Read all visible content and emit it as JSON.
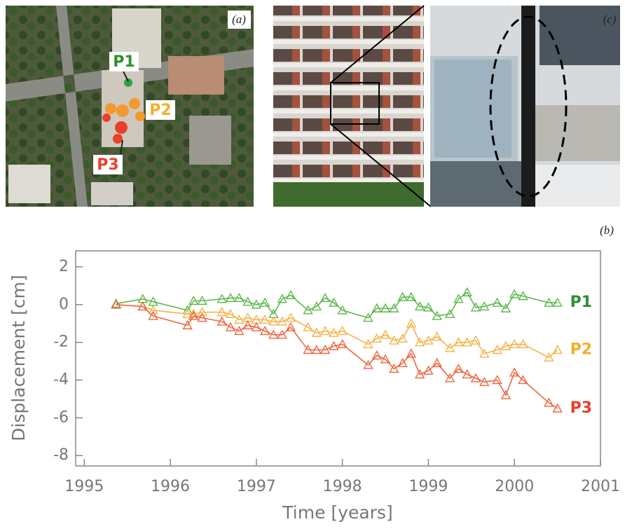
{
  "figure": {
    "panel_labels": [
      "(a)",
      "(b)",
      "(c)"
    ]
  },
  "chart_data": {
    "type": "line",
    "x_label": "Time [years]",
    "y_label": "Displacement [cm]",
    "x": [
      1995.37,
      1995.68,
      1995.8,
      1996.2,
      1996.27,
      1996.37,
      1996.6,
      1996.7,
      1996.8,
      1996.9,
      1997.0,
      1997.1,
      1997.2,
      1997.3,
      1997.4,
      1997.6,
      1997.7,
      1997.8,
      1997.9,
      1998.0,
      1998.3,
      1998.4,
      1998.5,
      1998.6,
      1998.7,
      1998.8,
      1998.9,
      1999.0,
      1999.1,
      1999.25,
      1999.35,
      1999.45,
      1999.55,
      1999.65,
      1999.8,
      1999.9,
      2000.0,
      2000.1,
      2000.4,
      2000.5
    ],
    "series": [
      {
        "name": "P1",
        "color": "#5cb84a",
        "label_color": "#2f8f2f",
        "values": [
          0.05,
          0.3,
          0.15,
          -0.3,
          0.2,
          0.2,
          0.3,
          0.35,
          0.35,
          0.15,
          0,
          0.1,
          -0.5,
          0.3,
          0.5,
          -0.3,
          -0.1,
          0.35,
          0.1,
          -0.3,
          -0.7,
          -0.2,
          -0.2,
          -0.2,
          0.4,
          0.4,
          -0.1,
          -0.15,
          -0.6,
          -0.5,
          0.3,
          0.65,
          -0.15,
          -0.1,
          0.1,
          -0.2,
          0.55,
          0.45,
          0.1,
          0.1
        ]
      },
      {
        "name": "P2",
        "color": "#f6b24a",
        "label_color": "#f5ae2a",
        "values": [
          0,
          -0.1,
          -0.3,
          -0.5,
          -0.5,
          -0.4,
          -0.4,
          -0.5,
          -0.8,
          -0.7,
          -0.8,
          -0.8,
          -0.9,
          -0.9,
          -0.7,
          -1.2,
          -1.5,
          -1.4,
          -1.5,
          -1.4,
          -2.1,
          -1.8,
          -1.6,
          -1.9,
          -1.8,
          -1.0,
          -2.0,
          -1.9,
          -1.7,
          -2.3,
          -2.0,
          -2.0,
          -1.9,
          -2.6,
          -2.4,
          -2.2,
          -2.1,
          -2.1,
          -2.8,
          -2.4
        ]
      },
      {
        "name": "P3",
        "color": "#ef6640",
        "label_color": "#e8402a",
        "values": [
          0,
          -0.1,
          -0.6,
          -1.1,
          -0.6,
          -0.7,
          -0.9,
          -1.2,
          -1.4,
          -1.1,
          -1.2,
          -1.4,
          -1.6,
          -1.6,
          -1.2,
          -2.4,
          -2.4,
          -2.4,
          -2.2,
          -2.1,
          -3.2,
          -2.7,
          -2.9,
          -3.4,
          -3.1,
          -2.6,
          -3.7,
          -3.5,
          -3.1,
          -3.9,
          -3.4,
          -3.7,
          -3.9,
          -4.1,
          -4.0,
          -4.8,
          -3.6,
          -4.0,
          -5.2,
          -5.5
        ]
      }
    ],
    "xlim": [
      1994.9,
      2001.0
    ],
    "ylim": [
      -8.55,
      2.85
    ],
    "xticks": [
      1995,
      1996,
      1997,
      1998,
      1999,
      2000,
      2001
    ],
    "yticks": [
      -8,
      -6,
      -4,
      -2,
      0,
      2
    ]
  }
}
